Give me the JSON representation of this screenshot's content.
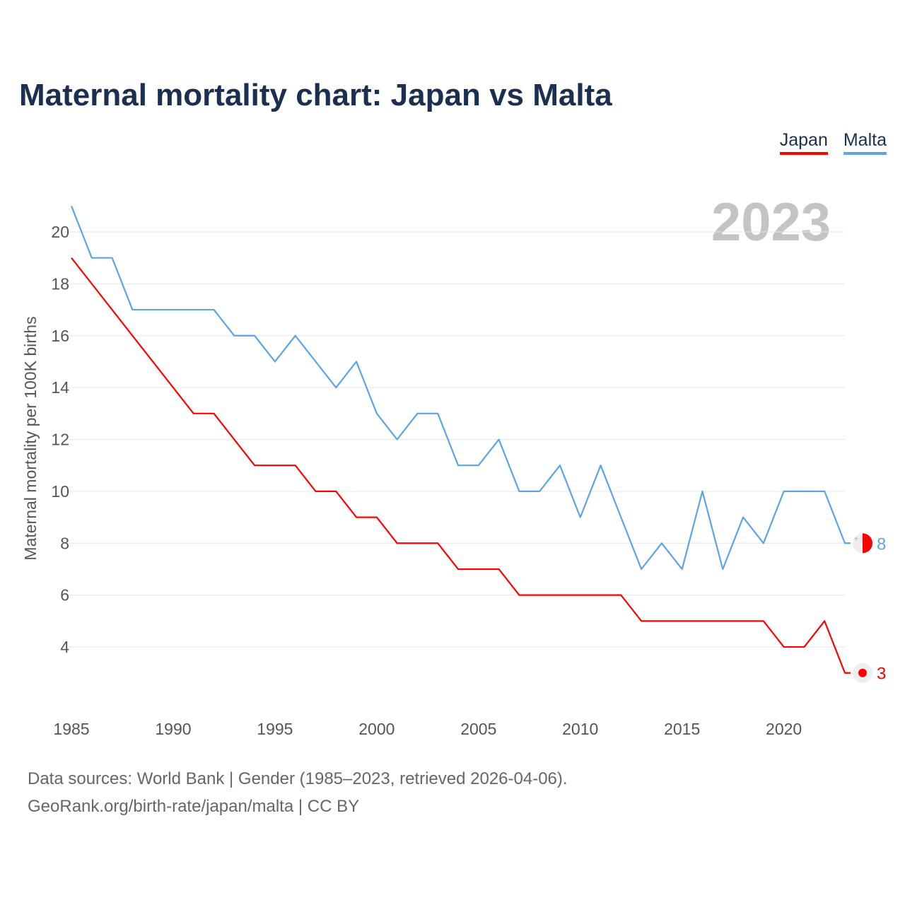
{
  "title": "Maternal mortality chart: Japan vs Malta",
  "legend": [
    {
      "name": "Japan",
      "color": "#ff0000"
    },
    {
      "name": "Malta",
      "color": "#5ba4e6"
    }
  ],
  "year_watermark": "2023",
  "source_line1": "Data sources: World Bank | Gender (1985–2023, retrieved 2026-04-06).",
  "source_line2": "GeoRank.org/birth-rate/japan/malta | CC BY",
  "chart_data": {
    "type": "line",
    "title": "Maternal mortality chart: Japan vs Malta",
    "xlabel": "",
    "ylabel": "Maternal mortality per 100K births",
    "x": [
      1985,
      1986,
      1987,
      1988,
      1989,
      1990,
      1991,
      1992,
      1993,
      1994,
      1995,
      1996,
      1997,
      1998,
      1999,
      2000,
      2001,
      2002,
      2003,
      2004,
      2005,
      2006,
      2007,
      2008,
      2009,
      2010,
      2011,
      2012,
      2013,
      2014,
      2015,
      2016,
      2017,
      2018,
      2019,
      2020,
      2021,
      2022,
      2023
    ],
    "series": [
      {
        "name": "Japan",
        "color": "#ff0000",
        "values": [
          19,
          18,
          17,
          16,
          15,
          14,
          13,
          13,
          12,
          11,
          11,
          11,
          10,
          10,
          9,
          9,
          8,
          8,
          8,
          7,
          7,
          7,
          6,
          6,
          6,
          6,
          6,
          6,
          5,
          5,
          5,
          5,
          5,
          5,
          5,
          4,
          4,
          5,
          3
        ],
        "end_label": "3"
      },
      {
        "name": "Malta",
        "color": "#5ba4e6",
        "values": [
          21,
          19,
          19,
          17,
          17,
          17,
          17,
          17,
          16,
          16,
          15,
          16,
          15,
          14,
          15,
          13,
          12,
          13,
          13,
          11,
          11,
          12,
          10,
          10,
          11,
          9,
          11,
          9,
          7,
          8,
          7,
          10,
          7,
          9,
          8,
          10,
          10,
          10,
          8
        ],
        "end_label": "8"
      }
    ],
    "xticks": [
      "1985",
      "1990",
      "1995",
      "2000",
      "2005",
      "2010",
      "2015",
      "2020"
    ],
    "yticks": [
      "4",
      "6",
      "8",
      "10",
      "12",
      "14",
      "16",
      "18",
      "20"
    ],
    "xlim": [
      1985,
      2023
    ],
    "ylim": [
      2,
      21
    ],
    "grid": true,
    "legend_position": "top-right"
  }
}
